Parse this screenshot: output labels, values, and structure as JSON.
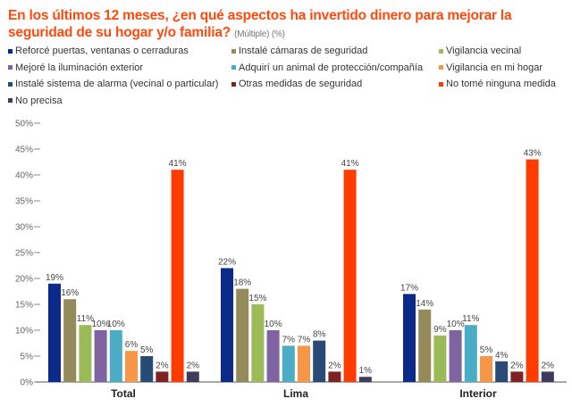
{
  "title": "En los últimos 12 meses, ¿en qué aspectos ha invertido dinero para mejorar la seguridad de su hogar y/o familia?",
  "subtitle": "(Múltiple) (%)",
  "chart_data": {
    "type": "bar",
    "title": "En los últimos 12 meses, ¿en qué aspectos ha invertido dinero para mejorar la seguridad de su hogar y/o familia?",
    "xlabel": "",
    "ylabel": "",
    "ylim": [
      0,
      50
    ],
    "yticks": [
      "0%",
      "5%",
      "10%",
      "15%",
      "20%",
      "25%",
      "30%",
      "35%",
      "40%",
      "45%",
      "50%"
    ],
    "legend_position": "top",
    "categories": [
      "Total",
      "Lima",
      "Interior"
    ],
    "series": [
      {
        "name": "Reforcé puertas, ventanas o cerraduras",
        "color": "#0b2a8a",
        "values": [
          19,
          22,
          17
        ]
      },
      {
        "name": "Instalé cámaras de seguridad",
        "color": "#958a5a",
        "values": [
          16,
          18,
          14
        ]
      },
      {
        "name": "Vigilancia vecinal",
        "color": "#9bbb59",
        "values": [
          11,
          15,
          9
        ]
      },
      {
        "name": "Mejoré la iluminación exterior",
        "color": "#8064a2",
        "values": [
          10,
          10,
          10
        ]
      },
      {
        "name": "Adquirí un animal de protección/compañía",
        "color": "#4bacc6",
        "values": [
          10,
          7,
          11
        ]
      },
      {
        "name": "Vigilancia en mi hogar",
        "color": "#f79646",
        "values": [
          6,
          7,
          5
        ]
      },
      {
        "name": "Instalé sistema de alarma (vecinal o particular)",
        "color": "#284a74",
        "values": [
          5,
          8,
          4
        ]
      },
      {
        "name": "Otras medidas de seguridad",
        "color": "#7f2222",
        "values": [
          2,
          2,
          2
        ]
      },
      {
        "name": "No tomé ninguna medida",
        "color": "#ff3c00",
        "values": [
          41,
          41,
          43
        ]
      },
      {
        "name": "No precisa",
        "color": "#3f3a5e",
        "values": [
          2,
          1,
          2
        ]
      }
    ]
  }
}
